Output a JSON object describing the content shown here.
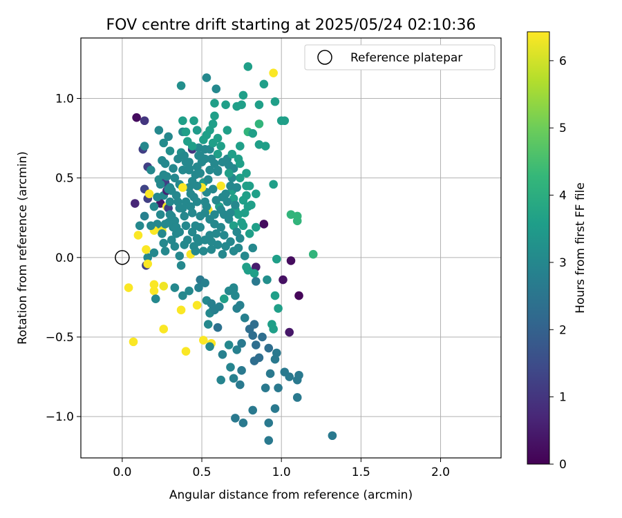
{
  "chart_data": {
    "type": "scatter",
    "title": "FOV centre drift starting at 2025/05/24 02:10:36",
    "xlabel": "Angular distance from reference (arcmin)",
    "ylabel": "Rotation from reference (arcmin)",
    "xlim": [
      -0.26,
      2.38
    ],
    "ylim": [
      -1.26,
      1.38
    ],
    "x_ticks": [
      0.0,
      0.5,
      1.0,
      1.5,
      2.0
    ],
    "x_tick_labels": [
      "0.0",
      "0.5",
      "1.0",
      "1.5",
      "2.0"
    ],
    "y_ticks": [
      -1.0,
      -0.5,
      0.0,
      0.5,
      1.0
    ],
    "y_tick_labels": [
      "−1.0",
      "−0.5",
      "0.0",
      "0.5",
      "1.0"
    ],
    "grid": true,
    "legend": {
      "position": "top-right",
      "label": "Reference platepar"
    },
    "reference": {
      "x": 0.0,
      "y": 0.0
    },
    "colorbar": {
      "label": "Hours from first FF file",
      "colormap": "viridis",
      "range": [
        0,
        6.43
      ],
      "ticks": [
        0,
        1,
        2,
        3,
        4,
        5,
        6
      ],
      "tick_labels": [
        "0",
        "1",
        "2",
        "3",
        "4",
        "5",
        "6"
      ]
    },
    "points": [
      [
        0.09,
        0.88,
        0.2
      ],
      [
        0.14,
        0.86,
        1.0
      ],
      [
        0.13,
        0.68,
        1.2
      ],
      [
        0.14,
        0.7,
        3.0
      ],
      [
        0.08,
        0.34,
        0.7
      ],
      [
        0.14,
        0.43,
        1.3
      ],
      [
        0.16,
        0.37,
        1.2
      ],
      [
        0.16,
        0.57,
        1.2
      ],
      [
        0.18,
        0.55,
        3.0
      ],
      [
        0.14,
        0.26,
        2.8
      ],
      [
        0.11,
        0.2,
        3.0
      ],
      [
        0.17,
        0.4,
        6.4
      ],
      [
        0.23,
        0.8,
        3.0
      ],
      [
        0.23,
        0.49,
        3.1
      ],
      [
        0.25,
        0.61,
        3.0
      ],
      [
        0.26,
        0.72,
        3.1
      ],
      [
        0.27,
        0.47,
        1.2
      ],
      [
        0.26,
        0.39,
        3.0
      ],
      [
        0.22,
        0.19,
        3.0
      ],
      [
        0.25,
        0.17,
        6.3
      ],
      [
        0.26,
        0.09,
        3.0
      ],
      [
        0.24,
        0.34,
        0.4
      ],
      [
        0.28,
        0.32,
        6.3
      ],
      [
        0.29,
        0.31,
        1.2
      ],
      [
        0.28,
        0.42,
        0.6
      ],
      [
        0.27,
        0.59,
        3.0
      ],
      [
        0.3,
        0.67,
        3.2
      ],
      [
        0.29,
        0.76,
        3.0
      ],
      [
        0.3,
        0.44,
        3.0
      ],
      [
        0.31,
        0.26,
        3.0
      ],
      [
        0.32,
        0.19,
        3.0
      ],
      [
        0.33,
        0.23,
        3.0
      ],
      [
        0.34,
        0.15,
        3.0
      ],
      [
        0.33,
        0.07,
        3.0
      ],
      [
        0.35,
        0.35,
        3.0
      ],
      [
        0.36,
        0.31,
        3.0
      ],
      [
        0.37,
        0.66,
        3.2
      ],
      [
        0.38,
        0.79,
        3.1
      ],
      [
        0.38,
        0.86,
        3.6
      ],
      [
        0.4,
        0.79,
        3.6
      ],
      [
        0.41,
        0.73,
        3.6
      ],
      [
        0.37,
        1.08,
        3.2
      ],
      [
        0.38,
        0.55,
        3.0
      ],
      [
        0.4,
        0.6,
        3.0
      ],
      [
        0.42,
        0.55,
        3.0
      ],
      [
        0.42,
        0.44,
        3.0
      ],
      [
        0.4,
        0.35,
        3.0
      ],
      [
        0.43,
        0.32,
        3.0
      ],
      [
        0.45,
        0.38,
        3.0
      ],
      [
        0.44,
        0.48,
        3.0
      ],
      [
        0.44,
        0.68,
        1.0
      ],
      [
        0.45,
        0.86,
        3.6
      ],
      [
        0.47,
        0.8,
        3.5
      ],
      [
        0.48,
        0.69,
        3.0
      ],
      [
        0.49,
        0.64,
        3.0
      ],
      [
        0.51,
        0.74,
        3.6
      ],
      [
        0.47,
        0.57,
        3.0
      ],
      [
        0.49,
        0.53,
        3.0
      ],
      [
        0.51,
        0.47,
        3.5
      ],
      [
        0.53,
        0.41,
        3.0
      ],
      [
        0.5,
        0.44,
        6.4
      ],
      [
        0.52,
        0.35,
        3.0
      ],
      [
        0.54,
        0.3,
        6.4
      ],
      [
        0.52,
        0.62,
        3.0
      ],
      [
        0.55,
        0.68,
        3.0
      ],
      [
        0.55,
        0.8,
        3.6
      ],
      [
        0.57,
        0.84,
        3.6
      ],
      [
        0.58,
        0.89,
        3.6
      ],
      [
        0.53,
        1.13,
        3.0
      ],
      [
        0.59,
        1.06,
        3.0
      ],
      [
        0.58,
        0.97,
        3.6
      ],
      [
        0.6,
        0.65,
        3.6
      ],
      [
        0.58,
        0.59,
        3.0
      ],
      [
        0.6,
        0.54,
        3.0
      ],
      [
        0.62,
        0.45,
        6.4
      ],
      [
        0.63,
        0.38,
        3.0
      ],
      [
        0.61,
        0.32,
        3.6
      ],
      [
        0.64,
        0.27,
        3.0
      ],
      [
        0.65,
        0.96,
        3.6
      ],
      [
        0.66,
        0.8,
        3.6
      ],
      [
        0.67,
        0.58,
        3.0
      ],
      [
        0.69,
        0.5,
        3.0
      ],
      [
        0.69,
        0.42,
        3.6
      ],
      [
        0.7,
        0.37,
        3.6
      ],
      [
        0.71,
        0.3,
        3.6
      ],
      [
        0.73,
        0.62,
        3.6
      ],
      [
        0.74,
        0.7,
        3.6
      ],
      [
        0.72,
        0.95,
        3.6
      ],
      [
        0.75,
        0.96,
        3.6
      ],
      [
        0.76,
        1.02,
        3.6
      ],
      [
        0.79,
        1.2,
        3.6
      ],
      [
        0.79,
        0.79,
        4.2
      ],
      [
        0.82,
        0.78,
        3.6
      ],
      [
        0.78,
        0.53,
        3.6
      ],
      [
        0.8,
        0.45,
        3.6
      ],
      [
        0.84,
        0.4,
        3.6
      ],
      [
        0.79,
        0.32,
        3.6
      ],
      [
        0.76,
        0.2,
        3.6
      ],
      [
        0.8,
        0.15,
        3.6
      ],
      [
        0.84,
        0.19,
        3.6
      ],
      [
        0.86,
        0.71,
        3.6
      ],
      [
        0.86,
        0.84,
        4.2
      ],
      [
        0.86,
        0.96,
        3.6
      ],
      [
        0.89,
        1.09,
        3.6
      ],
      [
        0.95,
        1.16,
        6.4
      ],
      [
        0.9,
        0.7,
        3.6
      ],
      [
        0.89,
        0.21,
        0.2
      ],
      [
        0.95,
        0.46,
        3.6
      ],
      [
        0.96,
        0.98,
        3.6
      ],
      [
        1.0,
        0.86,
        3.6
      ],
      [
        1.02,
        0.86,
        3.6
      ],
      [
        1.06,
        0.27,
        4.2
      ],
      [
        1.1,
        0.26,
        4.2
      ],
      [
        1.1,
        0.23,
        4.2
      ],
      [
        1.2,
        0.02,
        4.2
      ],
      [
        1.06,
        -0.02,
        0.2
      ],
      [
        1.11,
        -0.24,
        0.1
      ],
      [
        1.05,
        -0.47,
        0.4
      ],
      [
        0.97,
        -0.01,
        3.6
      ],
      [
        0.96,
        -0.24,
        3.6
      ],
      [
        0.98,
        -0.32,
        3.6
      ],
      [
        0.94,
        -0.42,
        3.6
      ],
      [
        0.95,
        -0.45,
        3.6
      ],
      [
        1.01,
        -0.14,
        0.3
      ],
      [
        0.84,
        -0.06,
        0.5
      ],
      [
        0.83,
        -0.1,
        3.6
      ],
      [
        0.79,
        -0.08,
        3.6
      ],
      [
        0.84,
        -0.15,
        2.6
      ],
      [
        0.78,
        -0.06,
        3.6
      ],
      [
        0.91,
        -0.14,
        3.2
      ],
      [
        0.16,
        0.0,
        3.0
      ],
      [
        0.15,
        -0.05,
        1.2
      ],
      [
        0.15,
        0.05,
        6.4
      ],
      [
        0.16,
        -0.04,
        6.4
      ],
      [
        0.1,
        0.14,
        6.4
      ],
      [
        0.04,
        -0.19,
        6.4
      ],
      [
        0.07,
        -0.53,
        6.4
      ],
      [
        0.2,
        -0.17,
        6.4
      ],
      [
        0.2,
        -0.21,
        6.4
      ],
      [
        0.21,
        -0.26,
        3.0
      ],
      [
        0.26,
        -0.18,
        6.3
      ],
      [
        0.26,
        -0.45,
        6.4
      ],
      [
        0.4,
        -0.59,
        6.4
      ],
      [
        0.37,
        -0.33,
        6.4
      ],
      [
        0.38,
        -0.24,
        3.0
      ],
      [
        0.33,
        -0.19,
        3.0
      ],
      [
        0.42,
        -0.21,
        3.0
      ],
      [
        0.47,
        -0.3,
        6.4
      ],
      [
        0.51,
        -0.52,
        6.4
      ],
      [
        0.56,
        -0.54,
        6.4
      ],
      [
        0.55,
        -0.56,
        3.0
      ],
      [
        0.54,
        -0.42,
        3.0
      ],
      [
        0.53,
        -0.27,
        3.0
      ],
      [
        0.55,
        -0.35,
        3.0
      ],
      [
        0.57,
        -0.33,
        3.0
      ],
      [
        0.6,
        -0.44,
        2.4
      ],
      [
        0.63,
        -0.61,
        2.8
      ],
      [
        0.62,
        -0.77,
        2.9
      ],
      [
        0.67,
        -0.55,
        3.0
      ],
      [
        0.68,
        -0.69,
        2.9
      ],
      [
        0.7,
        -0.76,
        2.8
      ],
      [
        0.72,
        -0.58,
        2.8
      ],
      [
        0.74,
        -0.8,
        2.6
      ],
      [
        0.75,
        -0.71,
        2.6
      ],
      [
        0.75,
        -0.54,
        2.6
      ],
      [
        0.77,
        -0.38,
        2.8
      ],
      [
        0.8,
        -0.45,
        2.3
      ],
      [
        0.82,
        -0.49,
        2.3
      ],
      [
        0.83,
        -0.42,
        2.3
      ],
      [
        0.84,
        -0.55,
        2.3
      ],
      [
        0.83,
        -0.65,
        2.3
      ],
      [
        0.86,
        -0.63,
        2.3
      ],
      [
        0.88,
        -0.5,
        2.3
      ],
      [
        0.92,
        -0.57,
        2.3
      ],
      [
        0.93,
        -0.73,
        2.6
      ],
      [
        0.9,
        -0.82,
        2.6
      ],
      [
        0.97,
        -0.6,
        2.6
      ],
      [
        0.96,
        -0.64,
        2.6
      ],
      [
        0.98,
        -0.82,
        2.6
      ],
      [
        1.02,
        -0.72,
        2.6
      ],
      [
        1.05,
        -0.75,
        2.6
      ],
      [
        1.1,
        -0.77,
        2.6
      ],
      [
        1.11,
        -0.74,
        2.6
      ],
      [
        1.1,
        -0.88,
        2.6
      ],
      [
        0.82,
        -0.96,
        2.6
      ],
      [
        0.76,
        -1.04,
        2.6
      ],
      [
        0.71,
        -1.01,
        2.6
      ],
      [
        0.92,
        -1.04,
        2.6
      ],
      [
        0.96,
        -0.95,
        2.6
      ],
      [
        0.92,
        -1.15,
        2.6
      ],
      [
        1.32,
        -1.12,
        2.6
      ],
      [
        0.49,
        -0.14,
        2.6
      ],
      [
        0.48,
        -0.19,
        2.8
      ],
      [
        0.52,
        -0.16,
        2.8
      ],
      [
        0.56,
        -0.29,
        2.8
      ],
      [
        0.58,
        -0.33,
        2.8
      ],
      [
        0.61,
        -0.31,
        2.8
      ],
      [
        0.64,
        -0.26,
        3.6
      ],
      [
        0.67,
        -0.21,
        3.0
      ],
      [
        0.7,
        -0.19,
        3.0
      ],
      [
        0.71,
        -0.24,
        3.0
      ],
      [
        0.72,
        -0.32,
        2.8
      ],
      [
        0.74,
        -0.3,
        2.8
      ],
      [
        0.7,
        -0.2,
        3.0
      ],
      [
        0.43,
        0.02,
        6.4
      ],
      [
        0.45,
        0.07,
        3.0
      ],
      [
        0.47,
        0.12,
        3.0
      ],
      [
        0.49,
        0.19,
        3.0
      ],
      [
        0.52,
        0.11,
        3.0
      ],
      [
        0.56,
        0.1,
        3.0
      ],
      [
        0.59,
        0.15,
        3.0
      ],
      [
        0.63,
        0.02,
        3.0
      ],
      [
        0.65,
        0.07,
        3.0
      ],
      [
        0.7,
        0.04,
        3.0
      ],
      [
        0.73,
        0.06,
        3.0
      ],
      [
        0.74,
        0.12,
        3.0
      ],
      [
        0.77,
        0.01,
        3.0
      ],
      [
        0.82,
        0.06,
        3.0
      ],
      [
        0.36,
        0.01,
        3.0
      ],
      [
        0.39,
        0.08,
        3.0
      ],
      [
        0.37,
        -0.05,
        3.0
      ],
      [
        0.31,
        0.11,
        3.0
      ],
      [
        0.27,
        0.04,
        3.0
      ],
      [
        0.25,
        0.15,
        3.0
      ],
      [
        0.22,
        0.21,
        3.0
      ],
      [
        0.2,
        0.17,
        6.4
      ],
      [
        0.18,
        0.2,
        3.0
      ],
      [
        0.2,
        0.03,
        3.0
      ],
      [
        0.29,
        0.22,
        3.0
      ],
      [
        0.34,
        0.19,
        3.0
      ],
      [
        0.39,
        0.26,
        3.0
      ],
      [
        0.44,
        0.28,
        3.0
      ],
      [
        0.46,
        0.2,
        3.0
      ],
      [
        0.49,
        0.26,
        3.0
      ],
      [
        0.52,
        0.28,
        3.0
      ],
      [
        0.55,
        0.24,
        3.0
      ],
      [
        0.58,
        0.21,
        3.0
      ],
      [
        0.62,
        0.19,
        3.0
      ],
      [
        0.67,
        0.24,
        3.0
      ],
      [
        0.7,
        0.2,
        3.6
      ],
      [
        0.73,
        0.27,
        3.6
      ],
      [
        0.77,
        0.28,
        3.6
      ],
      [
        0.81,
        0.33,
        3.6
      ],
      [
        0.65,
        0.4,
        3.0
      ],
      [
        0.68,
        0.45,
        3.0
      ],
      [
        0.72,
        0.44,
        3.0
      ],
      [
        0.6,
        0.55,
        3.0
      ],
      [
        0.63,
        0.6,
        3.0
      ],
      [
        0.66,
        0.62,
        3.0
      ],
      [
        0.62,
        0.7,
        3.6
      ],
      [
        0.6,
        0.75,
        3.6
      ],
      [
        0.55,
        0.55,
        3.0
      ],
      [
        0.5,
        0.6,
        3.0
      ],
      [
        0.46,
        0.52,
        3.0
      ],
      [
        0.42,
        0.6,
        3.0
      ],
      [
        0.36,
        0.46,
        3.0
      ],
      [
        0.33,
        0.5,
        3.0
      ],
      [
        0.31,
        0.42,
        3.0
      ],
      [
        0.28,
        0.51,
        3.0
      ],
      [
        0.24,
        0.46,
        3.0
      ],
      [
        0.22,
        0.38,
        3.0
      ],
      [
        0.2,
        0.32,
        3.0
      ],
      [
        0.24,
        0.27,
        3.0
      ],
      [
        0.27,
        0.21,
        3.0
      ],
      [
        0.3,
        0.35,
        3.0
      ],
      [
        0.34,
        0.39,
        3.0
      ],
      [
        0.38,
        0.31,
        3.0
      ],
      [
        0.4,
        0.2,
        3.0
      ],
      [
        0.44,
        0.16,
        3.0
      ],
      [
        0.48,
        0.1,
        3.0
      ],
      [
        0.51,
        0.04,
        3.0
      ],
      [
        0.56,
        0.05,
        3.0
      ],
      [
        0.6,
        0.08,
        3.0
      ],
      [
        0.64,
        0.14,
        3.0
      ],
      [
        0.68,
        0.1,
        3.0
      ],
      [
        0.72,
        0.16,
        3.0
      ],
      [
        0.75,
        0.22,
        3.6
      ],
      [
        0.78,
        0.39,
        3.6
      ],
      [
        0.74,
        0.5,
        3.6
      ],
      [
        0.7,
        0.56,
        3.0
      ],
      [
        0.56,
        0.62,
        3.0
      ],
      [
        0.52,
        0.68,
        3.0
      ],
      [
        0.48,
        0.64,
        3.0
      ],
      [
        0.44,
        0.7,
        3.6
      ],
      [
        0.32,
        0.56,
        3.0
      ],
      [
        0.35,
        0.62,
        3.0
      ],
      [
        0.39,
        0.64,
        3.0
      ],
      [
        0.42,
        0.56,
        3.0
      ],
      [
        0.47,
        0.45,
        3.0
      ],
      [
        0.54,
        0.49,
        3.0
      ],
      [
        0.57,
        0.43,
        3.0
      ],
      [
        0.59,
        0.36,
        3.0
      ],
      [
        0.53,
        0.32,
        3.0
      ],
      [
        0.47,
        0.35,
        3.0
      ],
      [
        0.43,
        0.4,
        3.0
      ],
      [
        0.38,
        0.44,
        6.4
      ],
      [
        0.29,
        0.43,
        3.0
      ],
      [
        0.26,
        0.52,
        3.0
      ],
      [
        0.3,
        0.27,
        3.0
      ],
      [
        0.36,
        0.16,
        3.0
      ],
      [
        0.41,
        0.11,
        3.0
      ],
      [
        0.46,
        0.04,
        3.0
      ],
      [
        0.55,
        0.14,
        3.0
      ],
      [
        0.58,
        0.27,
        3.0
      ],
      [
        0.62,
        0.3,
        3.0
      ],
      [
        0.66,
        0.35,
        3.0
      ],
      [
        0.68,
        0.28,
        3.0
      ],
      [
        0.71,
        0.33,
        3.0
      ],
      [
        0.76,
        0.36,
        3.6
      ],
      [
        0.78,
        0.45,
        3.6
      ],
      [
        0.74,
        0.59,
        3.6
      ],
      [
        0.67,
        0.53,
        3.6
      ],
      [
        0.69,
        0.65,
        3.6
      ],
      [
        0.57,
        0.72,
        3.6
      ],
      [
        0.53,
        0.77,
        3.6
      ]
    ]
  }
}
